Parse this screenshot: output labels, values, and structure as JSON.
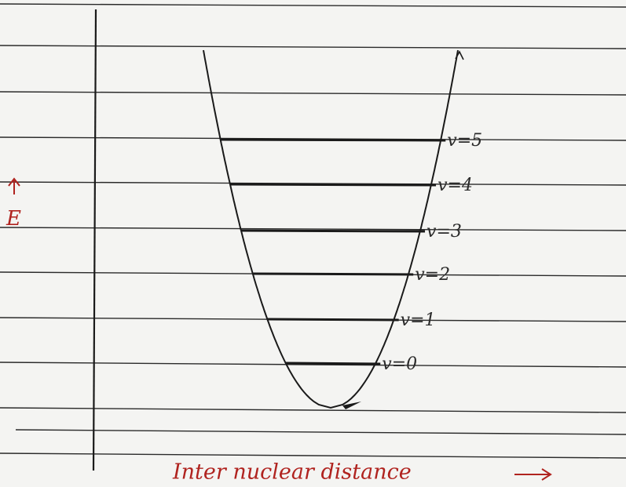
{
  "axes": {
    "y_label": "E",
    "x_label": "Inter nuclear distance"
  },
  "levels": [
    {
      "label": "v=5"
    },
    {
      "label": "v=4"
    },
    {
      "label": "v=3"
    },
    {
      "label": "v=2"
    },
    {
      "label": "v=1"
    },
    {
      "label": "v=0"
    }
  ]
}
